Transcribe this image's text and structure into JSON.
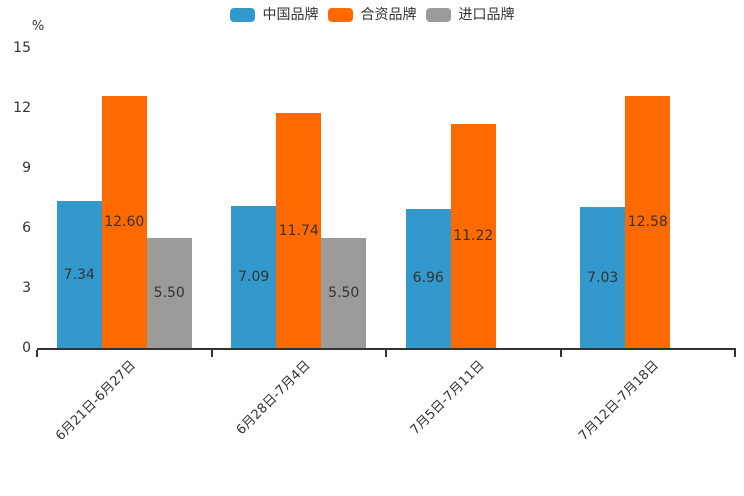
{
  "chart_data": {
    "type": "bar",
    "title": "",
    "unit_label": "%",
    "categories": [
      "6月21日-6月27日",
      "6月28日-7月4日",
      "7月5日-7月11日",
      "7月12日-7月18日"
    ],
    "series": [
      {
        "name": "中国品牌",
        "color": "#3398CB",
        "values": [
          7.34,
          7.09,
          6.96,
          7.03
        ]
      },
      {
        "name": "合资品牌",
        "color": "#FF6A00",
        "values": [
          12.6,
          11.74,
          11.22,
          12.58
        ]
      },
      {
        "name": "进口品牌",
        "color": "#9B9B9B",
        "values": [
          5.5,
          5.5,
          null,
          null
        ]
      }
    ],
    "value_label_decimals": 2,
    "ylim": [
      0,
      15
    ],
    "yticks": [
      15,
      12,
      9,
      6,
      3,
      0
    ],
    "grid": false,
    "legend_position": "top-center",
    "xlabel_rotation_deg": 45,
    "axis_color": "#333333",
    "label_color": "#333333"
  }
}
